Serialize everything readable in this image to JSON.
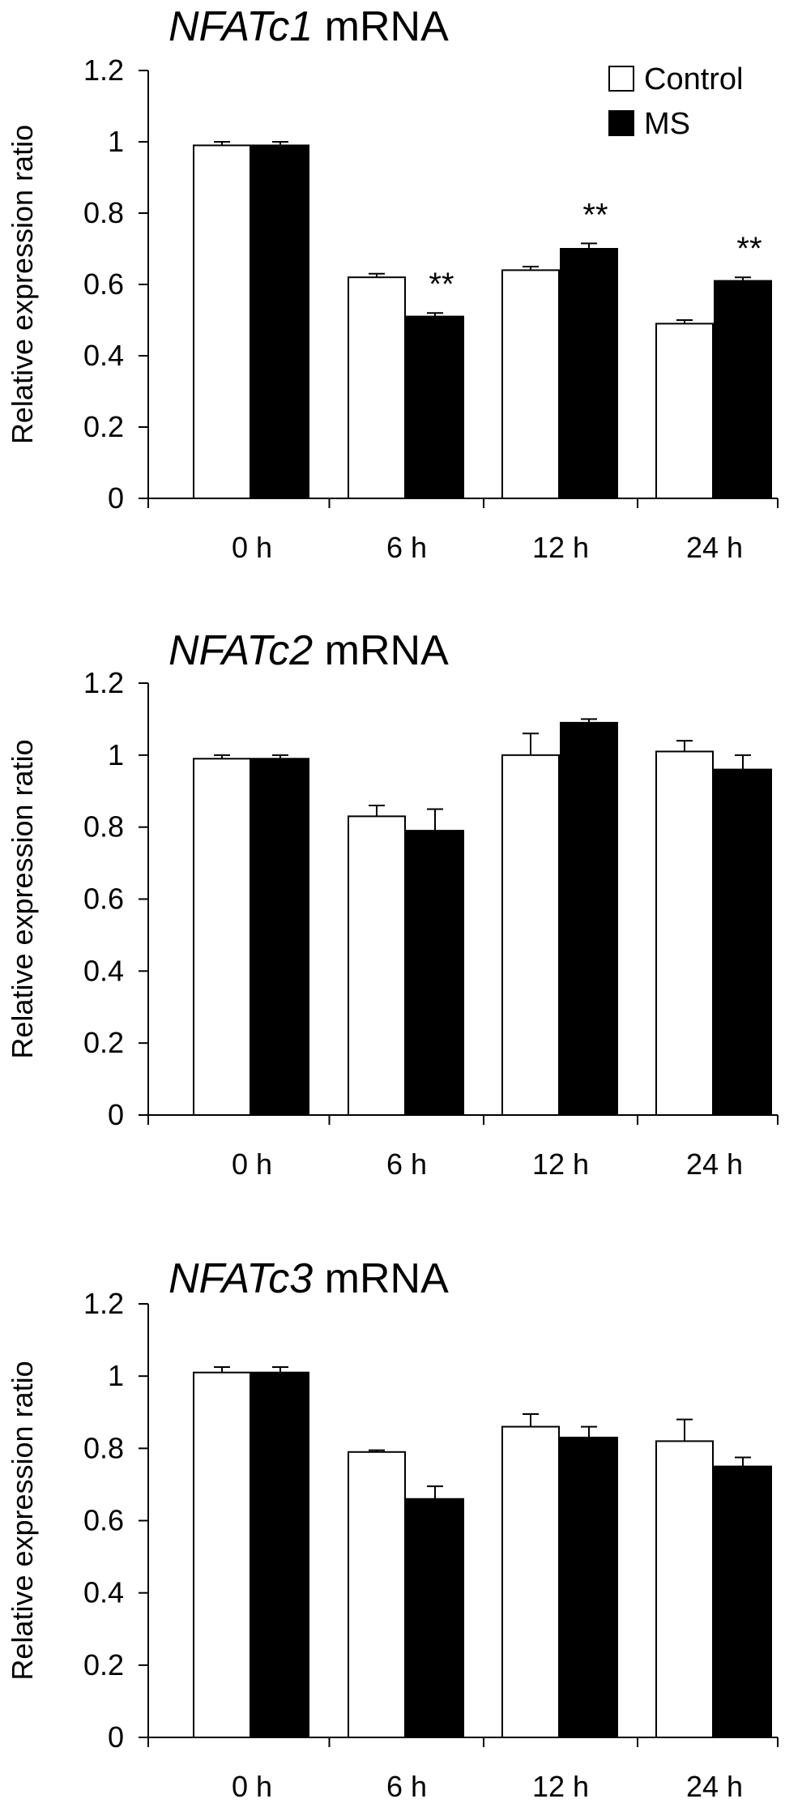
{
  "chart_data": [
    {
      "type": "bar",
      "title_gene": "NFATc1",
      "title_suffix": " mRNA",
      "ylabel": "Relative expression ratio",
      "ylim": [
        0,
        1.2
      ],
      "yticks": [
        "0",
        "0.2",
        "0.4",
        "0.6",
        "0.8",
        "1",
        "1.2"
      ],
      "categories": [
        "0 h",
        "6 h",
        "12 h",
        "24 h"
      ],
      "series": [
        {
          "name": "Control",
          "values": [
            0.99,
            0.62,
            0.64,
            0.49
          ],
          "errors": [
            0.01,
            0.01,
            0.01,
            0.01
          ],
          "color": "#ffffff"
        },
        {
          "name": "MS",
          "values": [
            0.99,
            0.51,
            0.7,
            0.61
          ],
          "errors": [
            0.01,
            0.01,
            0.015,
            0.01
          ],
          "color": "#000000"
        }
      ],
      "significance": [
        "",
        "**",
        "**",
        "**"
      ],
      "legend": {
        "position": "top-right",
        "entries": [
          "Control",
          "MS"
        ]
      }
    },
    {
      "type": "bar",
      "title_gene": "NFATc2",
      "title_suffix": " mRNA",
      "ylabel": "Relative expression ratio",
      "ylim": [
        0,
        1.2
      ],
      "yticks": [
        "0",
        "0.2",
        "0.4",
        "0.6",
        "0.8",
        "1",
        "1.2"
      ],
      "categories": [
        "0 h",
        "6 h",
        "12 h",
        "24 h"
      ],
      "series": [
        {
          "name": "Control",
          "values": [
            0.99,
            0.83,
            1.0,
            1.01
          ],
          "errors": [
            0.01,
            0.03,
            0.06,
            0.03
          ],
          "color": "#ffffff"
        },
        {
          "name": "MS",
          "values": [
            0.99,
            0.79,
            1.09,
            0.96
          ],
          "errors": [
            0.01,
            0.06,
            0.01,
            0.04
          ],
          "color": "#000000"
        }
      ],
      "significance": [
        "",
        "",
        "",
        ""
      ]
    },
    {
      "type": "bar",
      "title_gene": "NFATc3",
      "title_suffix": " mRNA",
      "ylabel": "Relative expression ratio",
      "ylim": [
        0,
        1.2
      ],
      "yticks": [
        "0",
        "0.2",
        "0.4",
        "0.6",
        "0.8",
        "1",
        "1.2"
      ],
      "categories": [
        "0 h",
        "6 h",
        "12 h",
        "24 h"
      ],
      "series": [
        {
          "name": "Control",
          "values": [
            1.01,
            0.79,
            0.86,
            0.82
          ],
          "errors": [
            0.015,
            0.005,
            0.035,
            0.06
          ],
          "color": "#ffffff"
        },
        {
          "name": "MS",
          "values": [
            1.01,
            0.66,
            0.83,
            0.75
          ],
          "errors": [
            0.015,
            0.035,
            0.03,
            0.025
          ],
          "color": "#000000"
        }
      ],
      "significance": [
        "",
        "",
        "",
        ""
      ]
    }
  ]
}
